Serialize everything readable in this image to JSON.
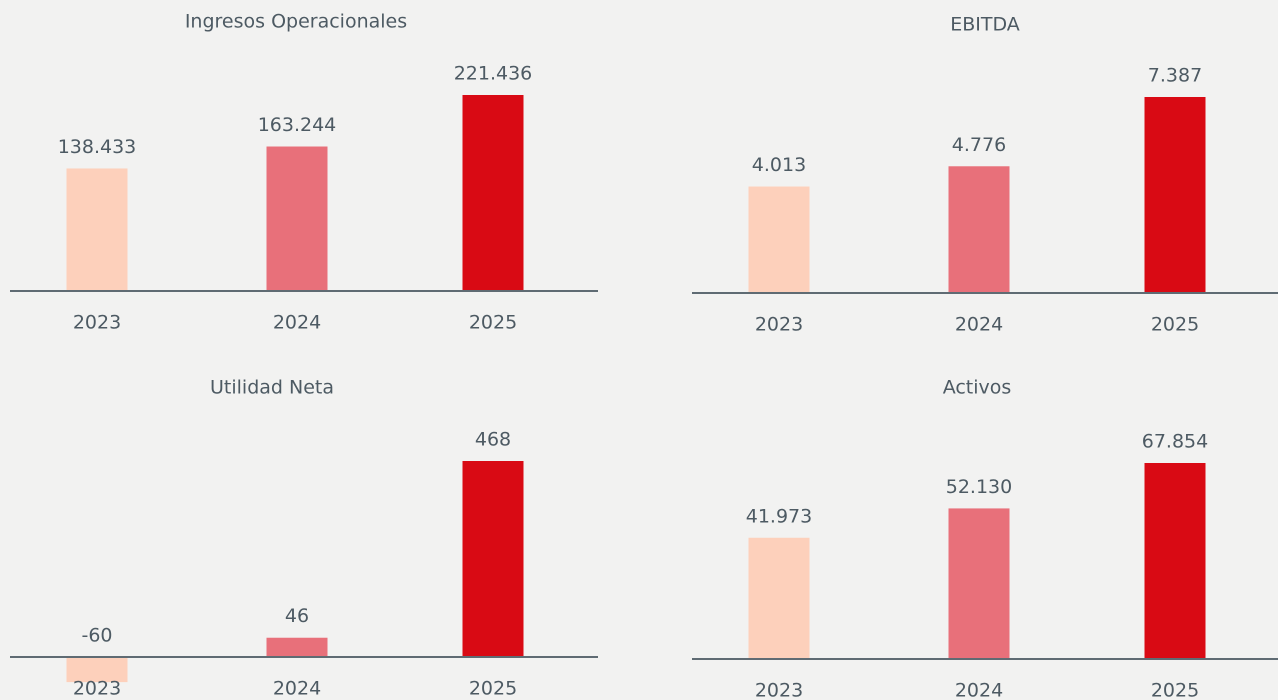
{
  "chart_data": [
    {
      "type": "bar",
      "title": "Ingresos Operacionales",
      "categories": [
        "2023",
        "2024",
        "2025"
      ],
      "values": [
        138433,
        163244,
        221436
      ],
      "value_labels": [
        "138.433",
        "163.244",
        "221.436"
      ],
      "colors": [
        "#fdd0bb",
        "#e8707a",
        "#d90a14"
      ]
    },
    {
      "type": "bar",
      "title": "EBITDA",
      "categories": [
        "2023",
        "2024",
        "2025"
      ],
      "values": [
        4013,
        4776,
        7387
      ],
      "value_labels": [
        "4.013",
        "4.776",
        "7.387"
      ],
      "colors": [
        "#fdd0bb",
        "#e8707a",
        "#d90a14"
      ]
    },
    {
      "type": "bar",
      "title": "Utilidad Neta",
      "categories": [
        "2023",
        "2024",
        "2025"
      ],
      "values": [
        -60,
        46,
        468
      ],
      "colors": [
        "#fdd0bb",
        "#e8707a",
        "#d90a14"
      ]
    },
    {
      "type": "bar",
      "title": "Activos",
      "categories": [
        "2023",
        "2024",
        "2025"
      ],
      "values": [
        41973,
        52130,
        67854
      ],
      "value_labels": [
        "41.973",
        "52.130",
        "67.854"
      ],
      "colors": [
        "#fdd0bb",
        "#e8707a",
        "#d90a14"
      ]
    }
  ]
}
